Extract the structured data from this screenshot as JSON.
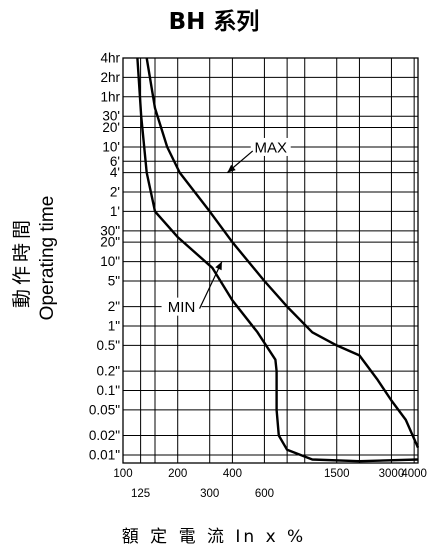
{
  "chart_data": {
    "type": "line",
    "title": "BH 系列",
    "xlabel": "額 定 電 流  In x %",
    "ylabel_cn": "動作時間",
    "ylabel_en": "Operating time",
    "x_scale": "log",
    "y_scale": "log",
    "xlim": [
      100,
      4200
    ],
    "ylim_seconds": [
      0.0075,
      14400
    ],
    "grid": true,
    "x_ticks_upper": [
      {
        "label": "100",
        "value": 100
      },
      {
        "label": "200",
        "value": 200
      },
      {
        "label": "400",
        "value": 400
      },
      {
        "label": "1500",
        "value": 1500
      },
      {
        "label": "3000",
        "value": 3000
      },
      {
        "label": "4000",
        "value": 4000
      }
    ],
    "x_ticks_lower": [
      {
        "label": "125",
        "value": 125
      },
      {
        "label": "300",
        "value": 300
      },
      {
        "label": "600",
        "value": 600
      }
    ],
    "x_grid": [
      100,
      125,
      150,
      200,
      300,
      400,
      600,
      800,
      1000,
      1500,
      2000,
      3000,
      4000
    ],
    "y_ticks": [
      {
        "label": "4hr",
        "seconds": 14400
      },
      {
        "label": "2hr",
        "seconds": 7200
      },
      {
        "label": "1hr",
        "seconds": 3600
      },
      {
        "label": "30'",
        "seconds": 1800
      },
      {
        "label": "20'",
        "seconds": 1200
      },
      {
        "label": "10'",
        "seconds": 600
      },
      {
        "label": "6'",
        "seconds": 360
      },
      {
        "label": "4'",
        "seconds": 240
      },
      {
        "label": "2'",
        "seconds": 120
      },
      {
        "label": "1'",
        "seconds": 60
      },
      {
        "label": "30\"",
        "seconds": 30
      },
      {
        "label": "20\"",
        "seconds": 20
      },
      {
        "label": "10\"",
        "seconds": 10
      },
      {
        "label": "5\"",
        "seconds": 5
      },
      {
        "label": "2\"",
        "seconds": 2
      },
      {
        "label": "1\"",
        "seconds": 1
      },
      {
        "label": "0.5\"",
        "seconds": 0.5
      },
      {
        "label": "0.2\"",
        "seconds": 0.2
      },
      {
        "label": "0.1\"",
        "seconds": 0.1
      },
      {
        "label": "0.05\"",
        "seconds": 0.05
      },
      {
        "label": "0.02\"",
        "seconds": 0.02
      },
      {
        "label": "0.01\"",
        "seconds": 0.01
      }
    ],
    "series": [
      {
        "name": "MAX",
        "points": [
          [
            135,
            14400
          ],
          [
            150,
            2400
          ],
          [
            175,
            600
          ],
          [
            205,
            240
          ],
          [
            300,
            60
          ],
          [
            400,
            20
          ],
          [
            600,
            5
          ],
          [
            800,
            2
          ],
          [
            1100,
            0.8
          ],
          [
            1500,
            0.5
          ],
          [
            2000,
            0.35
          ],
          [
            2500,
            0.15
          ],
          [
            3000,
            0.07
          ],
          [
            3600,
            0.035
          ],
          [
            4200,
            0.013
          ]
        ]
      },
      {
        "name": "MIN",
        "points": [
          [
            120,
            14400
          ],
          [
            126,
            1800
          ],
          [
            135,
            240
          ],
          [
            150,
            60
          ],
          [
            200,
            24
          ],
          [
            310,
            8
          ],
          [
            400,
            2.5
          ],
          [
            550,
            0.8
          ],
          [
            690,
            0.3
          ],
          [
            700,
            0.2
          ],
          [
            700,
            0.05
          ],
          [
            720,
            0.02
          ],
          [
            800,
            0.012
          ],
          [
            1100,
            0.0085
          ],
          [
            2000,
            0.008
          ],
          [
            4200,
            0.0085
          ]
        ]
      }
    ],
    "annotations": [
      {
        "text": "MAX",
        "series": "MAX",
        "at": [
          650,
          600
        ],
        "arrow_to": [
          375,
          240
        ]
      },
      {
        "text": "MIN",
        "series": "MIN",
        "at": [
          210,
          2
        ],
        "arrow_to": [
          350,
          10
        ]
      }
    ]
  }
}
